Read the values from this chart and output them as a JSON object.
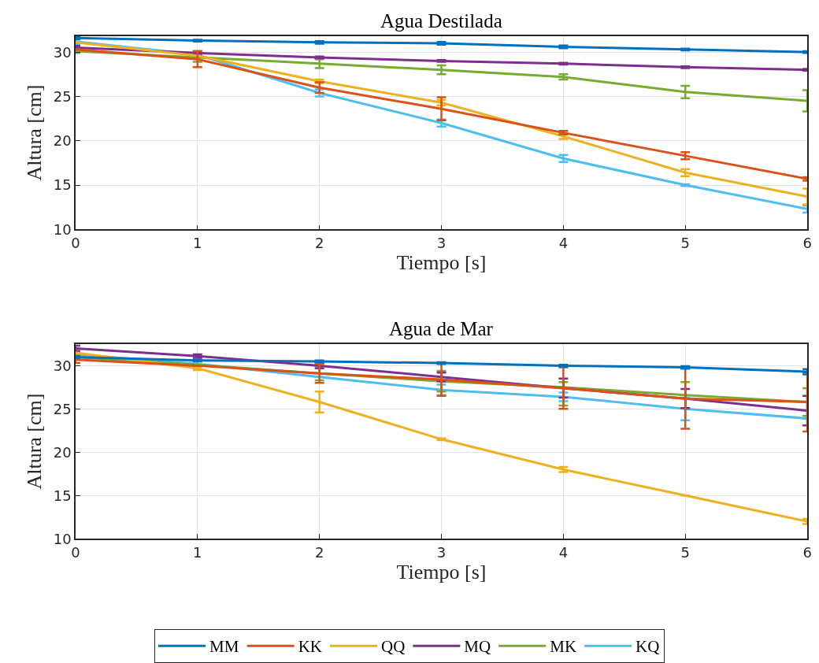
{
  "chart_data": [
    {
      "type": "line",
      "title": "Agua Destilada",
      "xlabel": "Tiempo [s]",
      "ylabel": "Altura [cm]",
      "x": [
        0,
        1,
        2,
        3,
        4,
        5,
        6
      ],
      "xlim": [
        0,
        6
      ],
      "xticks": [
        0,
        1,
        2,
        3,
        4,
        5,
        6
      ],
      "ylim": [
        10,
        31.8
      ],
      "yticks": [
        10,
        15,
        20,
        25,
        30
      ],
      "grid": true,
      "line_style": "solid",
      "series": [
        {
          "color": "#0072bd",
          "values": [
            31.6,
            31.3,
            31.1,
            31.0,
            30.6,
            30.3,
            30.0
          ],
          "errors": [
            0.15,
            0.1,
            0.15,
            0.15,
            0.15,
            0.1,
            0.1
          ]
        },
        {
          "color": "#d95319",
          "values": [
            30.3,
            29.2,
            26.0,
            23.6,
            20.9,
            18.3,
            15.7
          ],
          "errors": [
            null,
            0.9,
            0.6,
            1.3,
            0.2,
            0.4,
            0.2
          ]
        },
        {
          "color": "#edb120",
          "values": [
            31.1,
            29.6,
            26.7,
            24.3,
            20.5,
            16.4,
            13.7
          ],
          "errors": [
            null,
            null,
            0.2,
            0.3,
            0.3,
            0.4,
            0.9
          ]
        },
        {
          "color": "#7e2f8e",
          "values": [
            30.5,
            29.9,
            29.4,
            29.0,
            28.7,
            28.3,
            28.0
          ],
          "errors": [
            0.2,
            0.2,
            0.1,
            0.1,
            0.1,
            0.1,
            0.1
          ]
        },
        {
          "color": "#77ac30",
          "values": [
            30.1,
            29.4,
            28.7,
            28.0,
            27.2,
            25.5,
            24.5
          ],
          "errors": [
            0.2,
            0.5,
            0.5,
            0.5,
            0.3,
            0.7,
            1.2
          ]
        },
        {
          "color": "#4dbeee",
          "values": [
            31.2,
            29.7,
            25.4,
            22.0,
            18.0,
            15.0,
            12.3
          ],
          "errors": [
            0.3,
            null,
            0.4,
            0.4,
            0.4,
            0.1,
            0.4
          ]
        }
      ]
    },
    {
      "type": "line",
      "title": "Agua de Mar",
      "xlabel": "Tiempo [s]",
      "ylabel": "Altura [cm]",
      "x": [
        0,
        1,
        2,
        3,
        4,
        5,
        6
      ],
      "xlim": [
        0,
        6
      ],
      "xticks": [
        0,
        1,
        2,
        3,
        4,
        5,
        6
      ],
      "ylim": [
        10,
        32.5
      ],
      "yticks": [
        10,
        15,
        20,
        25,
        30
      ],
      "grid": true,
      "legend": "bottom",
      "line_style": "solid",
      "series": [
        {
          "name": "MM",
          "color": "#0072bd",
          "values": [
            31.0,
            30.6,
            30.5,
            30.3,
            30.0,
            29.8,
            29.3
          ],
          "errors": [
            0.1,
            0.1,
            0.1,
            0.1,
            0.1,
            0.15,
            0.3
          ]
        },
        {
          "name": "KK",
          "color": "#d95319",
          "values": [
            30.7,
            30.0,
            29.1,
            28.4,
            27.4,
            26.2,
            25.8
          ],
          "errors": [
            0.4,
            null,
            1.1,
            1.9,
            2.4,
            3.5,
            3.4
          ]
        },
        {
          "name": "QQ",
          "color": "#edb120",
          "values": [
            31.5,
            29.7,
            25.8,
            21.5,
            18.0,
            15.0,
            12.0
          ],
          "errors": [
            null,
            0.2,
            1.2,
            0.1,
            0.3,
            null,
            0.3
          ]
        },
        {
          "name": "MQ",
          "color": "#7e2f8e",
          "values": [
            32.0,
            31.1,
            30.0,
            28.7,
            27.4,
            26.2,
            24.8
          ],
          "errors": [
            0.3,
            0.2,
            0.3,
            0.5,
            1.1,
            1.1,
            1.7
          ]
        },
        {
          "name": "MK",
          "color": "#77ac30",
          "values": [
            31.0,
            30.1,
            29.1,
            28.2,
            27.5,
            26.6,
            25.8
          ],
          "errors": [
            0.2,
            null,
            0.8,
            1.2,
            [
              25.4,
              28.1
            ],
            1.5,
            1.6
          ]
        },
        {
          "name": "KQ",
          "color": "#4dbeee",
          "values": [
            31.3,
            30.2,
            28.7,
            27.2,
            26.4,
            25.0,
            23.9
          ],
          "errors": [
            null,
            0.3,
            null,
            0.6,
            0.5,
            1.3,
            null
          ]
        }
      ]
    }
  ]
}
